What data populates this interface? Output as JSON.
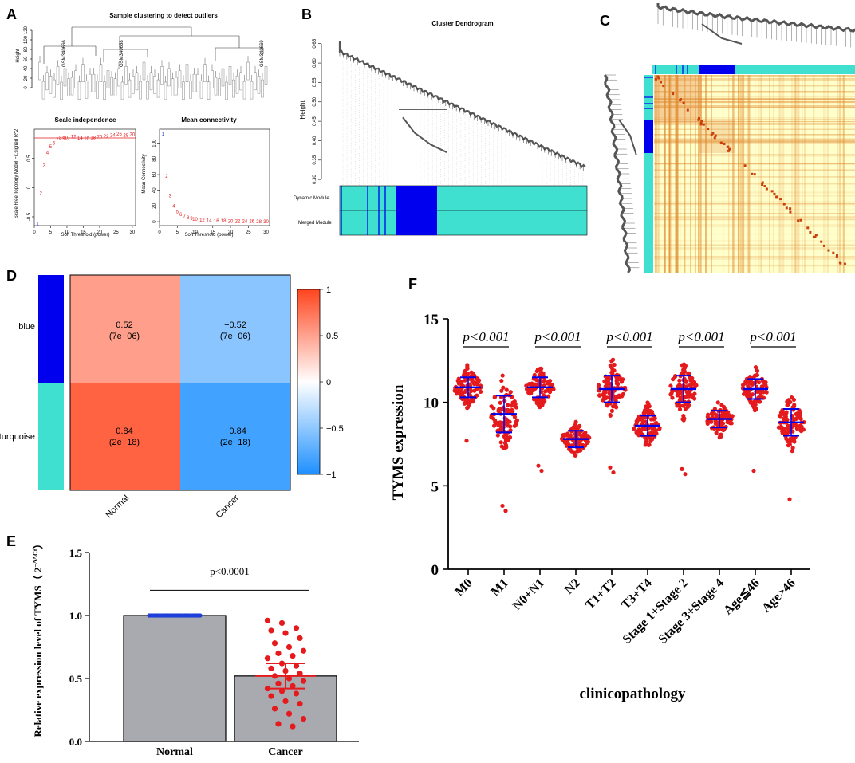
{
  "panel_labels": {
    "a": "A",
    "b": "B",
    "c": "C",
    "d": "D",
    "e": "E",
    "f": "F"
  },
  "colors": {
    "turquoise": "#40E0D0",
    "blue": "#0000EE",
    "red": "#E41A1C",
    "bar": "#A9A9B0",
    "hm_low": "#FFFFCC",
    "hm_high": "#C8410A"
  },
  "chart_data": [
    {
      "id": "A1",
      "type": "dendrogram",
      "title": "Sample clustering to detect outliers",
      "ylabel": "Height",
      "yticks": [
        0,
        20,
        40,
        60,
        80,
        100,
        120
      ],
      "leaf_labels": [
        "GSM340666",
        "GSM340658",
        "GSM340669"
      ]
    },
    {
      "id": "A2",
      "type": "scatter",
      "title": "Scale independence",
      "xlabel": "Soft Threshold (power)",
      "ylabel": "Scale Free Topology Model Fit,signed R^2",
      "xticks": [
        0,
        5,
        10,
        15,
        20,
        25,
        30
      ],
      "yticks": [
        -0.5,
        0.0,
        0.5
      ],
      "xlim": [
        0,
        31
      ],
      "ylim": [
        -0.65,
        1.0
      ],
      "threshold_line": 0.85,
      "points": [
        {
          "x": 1,
          "y": -0.62,
          "label": "1"
        },
        {
          "x": 2,
          "y": -0.1,
          "label": "2"
        },
        {
          "x": 3,
          "y": 0.38,
          "label": "3"
        },
        {
          "x": 4,
          "y": 0.6,
          "label": "4"
        },
        {
          "x": 5,
          "y": 0.7,
          "label": "5"
        },
        {
          "x": 6,
          "y": 0.76,
          "label": "6"
        },
        {
          "x": 7,
          "y": 0.82,
          "label": "7"
        },
        {
          "x": 8,
          "y": 0.85,
          "label": "8"
        },
        {
          "x": 9,
          "y": 0.84,
          "label": "9"
        },
        {
          "x": 10,
          "y": 0.86,
          "label": "10"
        },
        {
          "x": 12,
          "y": 0.87,
          "label": "12"
        },
        {
          "x": 14,
          "y": 0.85,
          "label": "14"
        },
        {
          "x": 16,
          "y": 0.84,
          "label": "16"
        },
        {
          "x": 18,
          "y": 0.86,
          "label": "18"
        },
        {
          "x": 20,
          "y": 0.87,
          "label": "20"
        },
        {
          "x": 22,
          "y": 0.88,
          "label": "22"
        },
        {
          "x": 24,
          "y": 0.9,
          "label": "24"
        },
        {
          "x": 26,
          "y": 0.92,
          "label": "26"
        },
        {
          "x": 28,
          "y": 0.9,
          "label": "28"
        },
        {
          "x": 30,
          "y": 0.91,
          "label": "30"
        }
      ]
    },
    {
      "id": "A3",
      "type": "scatter",
      "title": "Mean connectivity",
      "xlabel": "Soft Threshold (power)",
      "ylabel": "Mean Connectivity",
      "xticks": [
        0,
        5,
        10,
        15,
        20,
        25,
        30
      ],
      "yticks": [
        0,
        20,
        40,
        60,
        80,
        100
      ],
      "xlim": [
        0,
        31
      ],
      "ylim": [
        -5,
        118
      ],
      "points": [
        {
          "x": 1,
          "y": 112,
          "label": "1"
        },
        {
          "x": 2,
          "y": 58,
          "label": "2"
        },
        {
          "x": 3,
          "y": 33,
          "label": "3"
        },
        {
          "x": 4,
          "y": 20,
          "label": "4"
        },
        {
          "x": 5,
          "y": 13,
          "label": "5"
        },
        {
          "x": 6,
          "y": 9,
          "label": "6"
        },
        {
          "x": 7,
          "y": 7,
          "label": "7"
        },
        {
          "x": 8,
          "y": 5,
          "label": "8"
        },
        {
          "x": 9,
          "y": 4,
          "label": "9"
        },
        {
          "x": 10,
          "y": 3,
          "label": "10"
        },
        {
          "x": 12,
          "y": 2,
          "label": "12"
        },
        {
          "x": 14,
          "y": 1.5,
          "label": "14"
        },
        {
          "x": 16,
          "y": 1,
          "label": "16"
        },
        {
          "x": 18,
          "y": 1,
          "label": "18"
        },
        {
          "x": 20,
          "y": 0.8,
          "label": "20"
        },
        {
          "x": 22,
          "y": 0.6,
          "label": "22"
        },
        {
          "x": 24,
          "y": 0.5,
          "label": "24"
        },
        {
          "x": 26,
          "y": 0.4,
          "label": "26"
        },
        {
          "x": 28,
          "y": 0.3,
          "label": "28"
        },
        {
          "x": 30,
          "y": 0.3,
          "label": "30"
        }
      ]
    },
    {
      "id": "B",
      "type": "dendrogram",
      "title": "Cluster Dendrogram",
      "ylabel": "Height",
      "yticks": [
        0.3,
        0.35,
        0.4,
        0.45,
        0.5,
        0.55,
        0.6,
        0.65
      ],
      "ylim": [
        0.29,
        0.67
      ],
      "module_rows": [
        "Dynamic Module",
        "Merged Module"
      ]
    },
    {
      "id": "C",
      "type": "heatmap",
      "description_modules": [
        "turquoise",
        "blue"
      ]
    },
    {
      "id": "D",
      "type": "heatmap",
      "rows": [
        "blue",
        "turquoise"
      ],
      "columns": [
        "Normal",
        "Cancer"
      ],
      "values": [
        [
          0.52,
          -0.52
        ],
        [
          0.84,
          -0.84
        ]
      ],
      "pvalues": [
        [
          "(7e−06)",
          "(7e−06)"
        ],
        [
          "(2e−18)",
          "(2e−18)"
        ]
      ],
      "value_labels": [
        [
          "0.52",
          "−0.52"
        ],
        [
          "0.84",
          "−0.84"
        ]
      ],
      "colorbar_ticks": [
        "1",
        "0.5",
        "0",
        "−0.5",
        "−1"
      ],
      "zlim": [
        -1,
        1
      ]
    },
    {
      "id": "E",
      "type": "bar",
      "categories": [
        "Normal",
        "Cancer"
      ],
      "values": [
        1.0,
        0.52
      ],
      "sem": [
        0.0,
        0.1
      ],
      "ylabel_main": "Relative expression level of TYMS（ 2",
      "ylabel_sup": "−ΔΔCt",
      "ylabel_end": "）",
      "yticks": [
        "0.0",
        "0.5",
        "1.0",
        "1.5"
      ],
      "ylim": [
        0,
        1.5
      ],
      "annotation": "p<0.0001",
      "points": {
        "Normal": [
          1,
          1,
          1,
          1,
          1,
          1,
          1,
          1,
          1,
          1,
          1,
          1,
          1,
          1,
          1,
          1,
          1,
          1,
          1,
          1,
          1,
          1,
          1,
          1,
          1,
          1,
          1,
          1,
          1,
          1,
          1,
          1,
          1,
          1
        ],
        "Cancer": [
          0.96,
          0.94,
          0.9,
          0.88,
          0.86,
          0.82,
          0.78,
          0.75,
          0.72,
          0.7,
          0.68,
          0.66,
          0.62,
          0.6,
          0.58,
          0.56,
          0.54,
          0.52,
          0.5,
          0.48,
          0.46,
          0.44,
          0.42,
          0.4,
          0.38,
          0.36,
          0.32,
          0.3,
          0.26,
          0.22,
          0.18,
          0.14,
          0.12
        ]
      }
    },
    {
      "id": "F",
      "type": "scatter",
      "ylabel": "TYMS expression",
      "xlabel": "clinicopathology",
      "yticks": [
        "0",
        "5",
        "10",
        "15"
      ],
      "ylim": [
        0,
        15
      ],
      "categories": [
        "M0",
        "M1",
        "N0+N1",
        "N2",
        "T1+T2",
        "T3+T4",
        "Stage 1+Stage 2",
        "Stage 3+Stage 4",
        "Age≦46",
        "Age>46"
      ],
      "means": [
        10.9,
        9.3,
        10.9,
        7.8,
        10.8,
        8.6,
        10.8,
        9.0,
        10.8,
        8.8
      ],
      "sd": [
        0.6,
        1.1,
        0.6,
        0.5,
        0.8,
        0.6,
        0.8,
        0.5,
        0.6,
        0.8
      ],
      "outliers": [
        [
          7.7
        ],
        [
          3.8,
          3.5
        ],
        [
          6.2,
          5.9
        ],
        [],
        [
          6.1,
          5.8
        ],
        [],
        [
          6.0,
          5.7
        ],
        [],
        [
          5.9
        ],
        [
          4.2
        ]
      ],
      "comparisons": [
        {
          "pair": [
            0,
            1
          ],
          "label": "p<0.001"
        },
        {
          "pair": [
            2,
            3
          ],
          "label": "p<0.001"
        },
        {
          "pair": [
            4,
            5
          ],
          "label": "p<0.001"
        },
        {
          "pair": [
            6,
            7
          ],
          "label": "p<0.001"
        },
        {
          "pair": [
            8,
            9
          ],
          "label": "p<0.001"
        }
      ]
    }
  ]
}
